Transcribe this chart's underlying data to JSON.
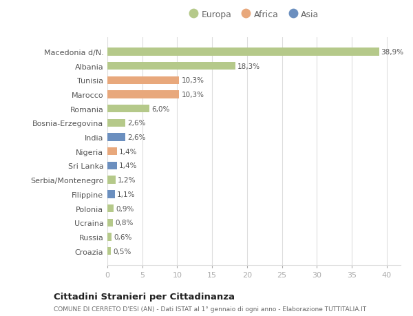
{
  "categories": [
    "Macedonia d/N.",
    "Albania",
    "Tunisia",
    "Marocco",
    "Romania",
    "Bosnia-Erzegovina",
    "India",
    "Nigeria",
    "Sri Lanka",
    "Serbia/Montenegro",
    "Filippine",
    "Polonia",
    "Ucraina",
    "Russia",
    "Croazia"
  ],
  "values": [
    38.9,
    18.3,
    10.3,
    10.3,
    6.0,
    2.6,
    2.6,
    1.4,
    1.4,
    1.2,
    1.1,
    0.9,
    0.8,
    0.6,
    0.5
  ],
  "labels": [
    "38,9%",
    "18,3%",
    "10,3%",
    "10,3%",
    "6,0%",
    "2,6%",
    "2,6%",
    "1,4%",
    "1,4%",
    "1,2%",
    "1,1%",
    "0,9%",
    "0,8%",
    "0,6%",
    "0,5%"
  ],
  "continents": [
    "Europa",
    "Europa",
    "Africa",
    "Africa",
    "Europa",
    "Europa",
    "Asia",
    "Africa",
    "Asia",
    "Europa",
    "Asia",
    "Europa",
    "Europa",
    "Europa",
    "Europa"
  ],
  "colors": {
    "Europa": "#b5c98a",
    "Africa": "#e8a87c",
    "Asia": "#6b8fbf"
  },
  "xlim": [
    0,
    42
  ],
  "xticks": [
    0,
    5,
    10,
    15,
    20,
    25,
    30,
    35,
    40
  ],
  "title": "Cittadini Stranieri per Cittadinanza",
  "subtitle": "COMUNE DI CERRETO D'ESI (AN) - Dati ISTAT al 1° gennaio di ogni anno - Elaborazione TUTTITALIA.IT",
  "bg_color": "#ffffff",
  "grid_color": "#dddddd",
  "bar_height": 0.55
}
